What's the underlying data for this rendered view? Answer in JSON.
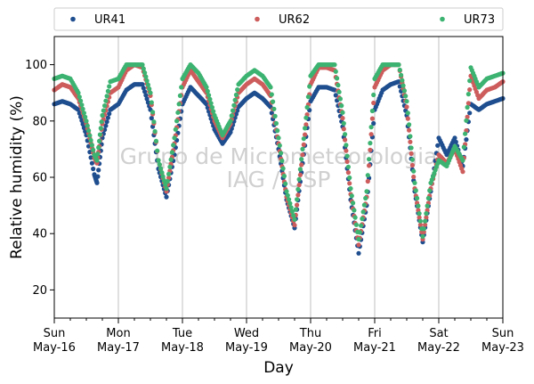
{
  "chart_data": {
    "type": "scatter",
    "xlabel": "Day",
    "ylabel": "Relative humidity (%)",
    "xlim": [
      "2021-05-16",
      "2021-05-23"
    ],
    "ylim": [
      10,
      110
    ],
    "yticks": [
      20,
      40,
      60,
      80,
      100
    ],
    "xticks": [
      {
        "date": "2021-05-16",
        "day": "Sun",
        "label": "May-16"
      },
      {
        "date": "2021-05-17",
        "day": "Mon",
        "label": "May-17"
      },
      {
        "date": "2021-05-18",
        "day": "Tue",
        "label": "May-18"
      },
      {
        "date": "2021-05-19",
        "day": "Wed",
        "label": "May-19"
      },
      {
        "date": "2021-05-20",
        "day": "Thu",
        "label": "May-20"
      },
      {
        "date": "2021-05-21",
        "day": "Fri",
        "label": "May-21"
      },
      {
        "date": "2021-05-22",
        "day": "Sat",
        "label": "May-22"
      },
      {
        "date": "2021-05-23",
        "day": "Sun",
        "label": "May-23"
      }
    ],
    "grid": "vertical at day ticks",
    "legend_position": "top",
    "watermark": [
      "Grupo de Micrometeorologia",
      "IAG / USP"
    ],
    "series": [
      {
        "name": "UR41",
        "color": "#1f4e8f",
        "points": [
          [
            "2021-05-16 00:00",
            86
          ],
          [
            "2021-05-16 03:00",
            87
          ],
          [
            "2021-05-16 06:00",
            86
          ],
          [
            "2021-05-16 09:00",
            84
          ],
          [
            "2021-05-16 12:00",
            75
          ],
          [
            "2021-05-16 15:00",
            61
          ],
          [
            "2021-05-16 16:00",
            58
          ],
          [
            "2021-05-16 18:00",
            74
          ],
          [
            "2021-05-16 21:00",
            84
          ],
          [
            "2021-05-17 00:00",
            86
          ],
          [
            "2021-05-17 03:00",
            91
          ],
          [
            "2021-05-17 06:00",
            93
          ],
          [
            "2021-05-17 09:00",
            93
          ],
          [
            "2021-05-17 12:00",
            84
          ],
          [
            "2021-05-17 15:00",
            63
          ],
          [
            "2021-05-17 18:00",
            53
          ],
          [
            "2021-05-17 21:00",
            68
          ],
          [
            "2021-05-18 00:00",
            86
          ],
          [
            "2021-05-18 03:00",
            92
          ],
          [
            "2021-05-18 06:00",
            89
          ],
          [
            "2021-05-18 09:00",
            86
          ],
          [
            "2021-05-18 12:00",
            77
          ],
          [
            "2021-05-18 15:00",
            72
          ],
          [
            "2021-05-18 18:00",
            76
          ],
          [
            "2021-05-18 21:00",
            85
          ],
          [
            "2021-05-19 00:00",
            88
          ],
          [
            "2021-05-19 03:00",
            90
          ],
          [
            "2021-05-19 06:00",
            88
          ],
          [
            "2021-05-19 09:00",
            85
          ],
          [
            "2021-05-19 12:00",
            70
          ],
          [
            "2021-05-19 15:00",
            52
          ],
          [
            "2021-05-19 18:00",
            42
          ],
          [
            "2021-05-19 21:00",
            65
          ],
          [
            "2021-05-20 00:00",
            87
          ],
          [
            "2021-05-20 03:00",
            92
          ],
          [
            "2021-05-20 06:00",
            92
          ],
          [
            "2021-05-20 09:00",
            91
          ],
          [
            "2021-05-20 12:00",
            78
          ],
          [
            "2021-05-20 15:00",
            52
          ],
          [
            "2021-05-20 18:00",
            33
          ],
          [
            "2021-05-20 21:00",
            50
          ],
          [
            "2021-05-21 00:00",
            84
          ],
          [
            "2021-05-21 03:00",
            91
          ],
          [
            "2021-05-21 06:00",
            93
          ],
          [
            "2021-05-21 09:00",
            94
          ],
          [
            "2021-05-21 12:00",
            82
          ],
          [
            "2021-05-21 15:00",
            55
          ],
          [
            "2021-05-21 18:00",
            37
          ],
          [
            "2021-05-21 21:00",
            55
          ],
          [
            "2021-05-22 00:00",
            74
          ],
          [
            "2021-05-22 03:00",
            68
          ],
          [
            "2021-05-22 06:00",
            74
          ],
          [
            "2021-05-22 09:00",
            64
          ],
          [
            "2021-05-22 12:00",
            86
          ],
          [
            "2021-05-22 15:00",
            84
          ],
          [
            "2021-05-22 18:00",
            86
          ],
          [
            "2021-05-22 21:00",
            87
          ],
          [
            "2021-05-23 00:00",
            88
          ]
        ]
      },
      {
        "name": "UR62",
        "color": "#cd5c5c",
        "points": [
          [
            "2021-05-16 00:00",
            91
          ],
          [
            "2021-05-16 03:00",
            93
          ],
          [
            "2021-05-16 06:00",
            92
          ],
          [
            "2021-05-16 09:00",
            88
          ],
          [
            "2021-05-16 12:00",
            79
          ],
          [
            "2021-05-16 15:00",
            67
          ],
          [
            "2021-05-16 16:00",
            65
          ],
          [
            "2021-05-16 18:00",
            79
          ],
          [
            "2021-05-16 21:00",
            90
          ],
          [
            "2021-05-17 00:00",
            92
          ],
          [
            "2021-05-17 03:00",
            98
          ],
          [
            "2021-05-17 06:00",
            100
          ],
          [
            "2021-05-17 09:00",
            99
          ],
          [
            "2021-05-17 12:00",
            89
          ],
          [
            "2021-05-17 15:00",
            66
          ],
          [
            "2021-05-17 18:00",
            55
          ],
          [
            "2021-05-17 21:00",
            72
          ],
          [
            "2021-05-18 00:00",
            92
          ],
          [
            "2021-05-18 03:00",
            98
          ],
          [
            "2021-05-18 06:00",
            94
          ],
          [
            "2021-05-18 09:00",
            90
          ],
          [
            "2021-05-18 12:00",
            80
          ],
          [
            "2021-05-18 15:00",
            74
          ],
          [
            "2021-05-18 18:00",
            79
          ],
          [
            "2021-05-18 21:00",
            90
          ],
          [
            "2021-05-19 00:00",
            93
          ],
          [
            "2021-05-19 03:00",
            95
          ],
          [
            "2021-05-19 06:00",
            93
          ],
          [
            "2021-05-19 09:00",
            89
          ],
          [
            "2021-05-19 12:00",
            72
          ],
          [
            "2021-05-19 15:00",
            53
          ],
          [
            "2021-05-19 18:00",
            43
          ],
          [
            "2021-05-19 21:00",
            68
          ],
          [
            "2021-05-20 00:00",
            93
          ],
          [
            "2021-05-20 03:00",
            99
          ],
          [
            "2021-05-20 06:00",
            99
          ],
          [
            "2021-05-20 09:00",
            98
          ],
          [
            "2021-05-20 12:00",
            81
          ],
          [
            "2021-05-20 15:00",
            54
          ],
          [
            "2021-05-20 18:00",
            36
          ],
          [
            "2021-05-20 21:00",
            53
          ],
          [
            "2021-05-21 00:00",
            92
          ],
          [
            "2021-05-21 03:00",
            98
          ],
          [
            "2021-05-21 06:00",
            100
          ],
          [
            "2021-05-21 09:00",
            100
          ],
          [
            "2021-05-21 12:00",
            85
          ],
          [
            "2021-05-21 15:00",
            56
          ],
          [
            "2021-05-21 18:00",
            38
          ],
          [
            "2021-05-21 21:00",
            56
          ],
          [
            "2021-05-22 00:00",
            68
          ],
          [
            "2021-05-22 03:00",
            65
          ],
          [
            "2021-05-22 06:00",
            70
          ],
          [
            "2021-05-22 09:00",
            62
          ],
          [
            "2021-05-22 12:00",
            96
          ],
          [
            "2021-05-22 15:00",
            88
          ],
          [
            "2021-05-22 18:00",
            91
          ],
          [
            "2021-05-22 21:00",
            92
          ],
          [
            "2021-05-23 00:00",
            94
          ]
        ]
      },
      {
        "name": "UR73",
        "color": "#3cb371",
        "points": [
          [
            "2021-05-16 00:00",
            95
          ],
          [
            "2021-05-16 03:00",
            96
          ],
          [
            "2021-05-16 06:00",
            95
          ],
          [
            "2021-05-16 09:00",
            90
          ],
          [
            "2021-05-16 12:00",
            80
          ],
          [
            "2021-05-16 15:00",
            68
          ],
          [
            "2021-05-16 16:00",
            66
          ],
          [
            "2021-05-16 18:00",
            82
          ],
          [
            "2021-05-16 21:00",
            94
          ],
          [
            "2021-05-17 00:00",
            95
          ],
          [
            "2021-05-17 03:00",
            100
          ],
          [
            "2021-05-17 06:00",
            100
          ],
          [
            "2021-05-17 09:00",
            100
          ],
          [
            "2021-05-17 12:00",
            90
          ],
          [
            "2021-05-17 15:00",
            66
          ],
          [
            "2021-05-17 18:00",
            56
          ],
          [
            "2021-05-17 21:00",
            74
          ],
          [
            "2021-05-18 00:00",
            95
          ],
          [
            "2021-05-18 03:00",
            100
          ],
          [
            "2021-05-18 06:00",
            97
          ],
          [
            "2021-05-18 09:00",
            92
          ],
          [
            "2021-05-18 12:00",
            82
          ],
          [
            "2021-05-18 15:00",
            75
          ],
          [
            "2021-05-18 18:00",
            80
          ],
          [
            "2021-05-18 21:00",
            93
          ],
          [
            "2021-05-19 00:00",
            96
          ],
          [
            "2021-05-19 03:00",
            98
          ],
          [
            "2021-05-19 06:00",
            96
          ],
          [
            "2021-05-19 09:00",
            92
          ],
          [
            "2021-05-19 12:00",
            74
          ],
          [
            "2021-05-19 15:00",
            55
          ],
          [
            "2021-05-19 18:00",
            45
          ],
          [
            "2021-05-19 21:00",
            70
          ],
          [
            "2021-05-20 00:00",
            96
          ],
          [
            "2021-05-20 03:00",
            100
          ],
          [
            "2021-05-20 06:00",
            100
          ],
          [
            "2021-05-20 09:00",
            100
          ],
          [
            "2021-05-20 12:00",
            83
          ],
          [
            "2021-05-20 15:00",
            56
          ],
          [
            "2021-05-20 18:00",
            38
          ],
          [
            "2021-05-20 21:00",
            55
          ],
          [
            "2021-05-21 00:00",
            95
          ],
          [
            "2021-05-21 03:00",
            100
          ],
          [
            "2021-05-21 06:00",
            100
          ],
          [
            "2021-05-21 09:00",
            100
          ],
          [
            "2021-05-21 12:00",
            87
          ],
          [
            "2021-05-21 15:00",
            58
          ],
          [
            "2021-05-21 18:00",
            39
          ],
          [
            "2021-05-21 21:00",
            58
          ],
          [
            "2021-05-22 00:00",
            66
          ],
          [
            "2021-05-22 03:00",
            64
          ],
          [
            "2021-05-22 06:00",
            71
          ],
          [
            "2021-05-22 09:00",
            66
          ],
          [
            "2021-05-22 12:00",
            99
          ],
          [
            "2021-05-22 15:00",
            92
          ],
          [
            "2021-05-22 18:00",
            95
          ],
          [
            "2021-05-22 21:00",
            96
          ],
          [
            "2021-05-23 00:00",
            97
          ]
        ]
      }
    ]
  }
}
